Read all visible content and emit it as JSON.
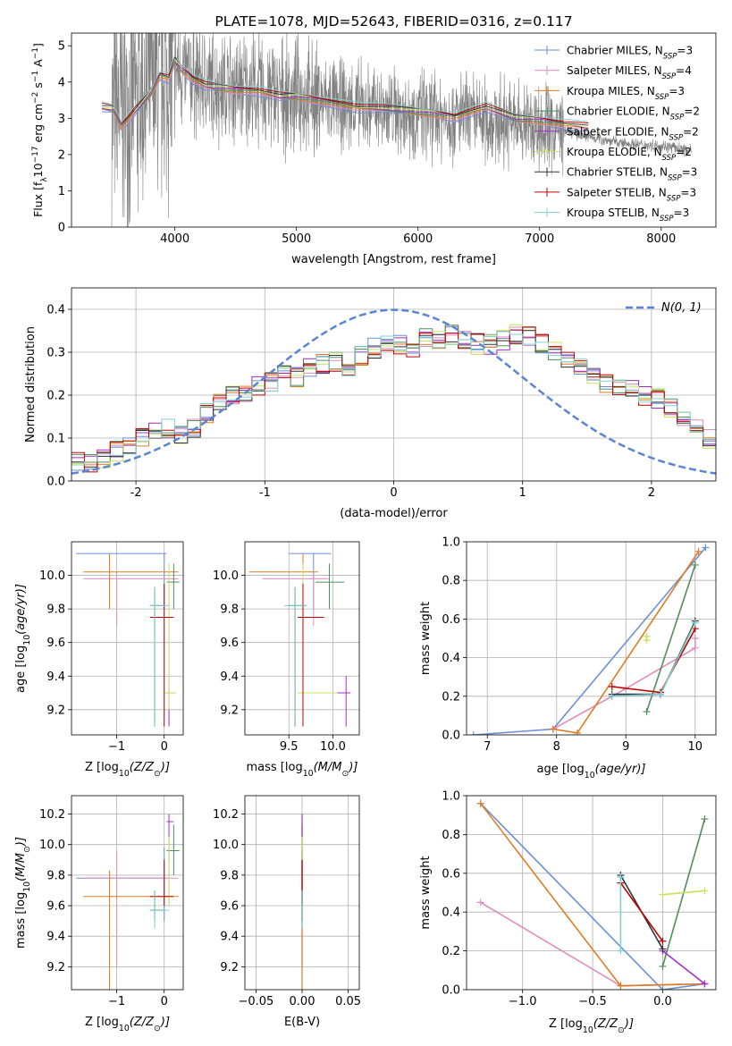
{
  "colors": {
    "chabrier_miles": "#6b8fd6",
    "salpeter_miles": "#e08cbf",
    "kroupa_miles": "#e07b22",
    "chabrier_elodie": "#4f8f5a",
    "salpeter_elodie": "#a02fc4",
    "kroupa_elodie": "#c8e05a",
    "chabrier_stelib": "#333333",
    "salpeter_stelib": "#c00000",
    "kroupa_stelib": "#7fd0d0",
    "observed": "#808080",
    "gauss": "#5a85d4"
  },
  "chart_data": [
    {
      "id": "spectrum",
      "type": "line",
      "title": "PLATE=1078, MJD=52643, FIBERID=0316, z=0.117",
      "xlabel": "wavelength [Angstrom, rest frame]",
      "ylabel": "Flux [f",
      "ylabel_parts": [
        "Flux [f",
        "λ",
        "10",
        "−17",
        " erg cm",
        "−2",
        " s",
        "−1",
        " A",
        "−1",
        "]"
      ],
      "xlim": [
        3150,
        8450
      ],
      "ylim": [
        0,
        5.35
      ],
      "xticks": [
        4000,
        5000,
        6000,
        7000,
        8000
      ],
      "yticks": [
        0,
        1,
        2,
        3,
        4,
        5
      ],
      "legend_position": "top-right",
      "legend": [
        {
          "name": "Chabrier MILES",
          "n": "3"
        },
        {
          "name": "Salpeter MILES",
          "n": "4"
        },
        {
          "name": "Kroupa MILES",
          "n": "3"
        },
        {
          "name": "Chabrier ELODIE",
          "n": "2"
        },
        {
          "name": "Salpeter ELODIE",
          "n": "2"
        },
        {
          "name": "Kroupa ELODIE",
          "n": "2"
        },
        {
          "name": "Chabrier STELIB",
          "n": "3"
        },
        {
          "name": "Salpeter STELIB",
          "n": "3"
        },
        {
          "name": "Kroupa STELIB",
          "n": "3"
        }
      ],
      "legend_n_label": "N",
      "legend_n_sub": "SSP",
      "model_continuum": {
        "x": [
          3400,
          3500,
          3560,
          3620,
          3700,
          3800,
          3880,
          3950,
          4000,
          4060,
          4150,
          4250,
          4350,
          4500,
          4700,
          4860,
          5000,
          5200,
          5500,
          5800,
          6100,
          6300,
          6560,
          6800,
          7000,
          7200,
          7400
        ],
        "y": [
          3.3,
          3.25,
          2.8,
          3.0,
          3.3,
          3.7,
          4.2,
          4.1,
          4.6,
          4.35,
          4.1,
          3.9,
          3.85,
          3.8,
          3.75,
          3.6,
          3.6,
          3.5,
          3.3,
          3.25,
          3.15,
          3.05,
          3.3,
          3.0,
          2.95,
          2.85,
          2.75
        ]
      },
      "observed_continuum": {
        "x": [
          3480,
          3700,
          4000,
          4300,
          4600,
          5000,
          5400,
          5800,
          6200,
          6600,
          7000,
          7400,
          7700,
          8000,
          8250
        ],
        "y": [
          3.1,
          3.6,
          4.3,
          3.9,
          3.8,
          3.6,
          3.35,
          3.2,
          3.05,
          2.95,
          2.8,
          2.5,
          2.3,
          2.25,
          2.1
        ]
      }
    },
    {
      "id": "residuals",
      "type": "bar",
      "xlabel": "(data-model)/error",
      "ylabel": "Normed distribution",
      "xlim": [
        -2.5,
        2.5
      ],
      "ylim": [
        0,
        0.45
      ],
      "xticks": [
        -2,
        -1,
        0,
        1,
        2
      ],
      "yticks": [
        0.0,
        0.1,
        0.2,
        0.3,
        0.4
      ],
      "legend_position": "top-right",
      "legend": "N(0, 1)",
      "gauss": {
        "mu": 0,
        "sigma": 1
      },
      "bin_width": 0.1,
      "base_profile": [
        0.05,
        0.04,
        0.05,
        0.07,
        0.08,
        0.1,
        0.11,
        0.12,
        0.11,
        0.12,
        0.16,
        0.19,
        0.2,
        0.21,
        0.22,
        0.23,
        0.25,
        0.24,
        0.26,
        0.27,
        0.28,
        0.27,
        0.29,
        0.31,
        0.32,
        0.32,
        0.31,
        0.33,
        0.33,
        0.34,
        0.33,
        0.32,
        0.32,
        0.33,
        0.34,
        0.34,
        0.32,
        0.3,
        0.28,
        0.26,
        0.24,
        0.23,
        0.22,
        0.21,
        0.2,
        0.19,
        0.17,
        0.14,
        0.12,
        0.1
      ]
    },
    {
      "id": "age_vs_Z",
      "type": "scatter",
      "xlabel": "Z [log",
      "xlabel_parts": [
        "Z [log",
        "10",
        "(Z/Z",
        "⊙",
        ")]"
      ],
      "ylabel": "age  [log",
      "ylabel_parts": [
        "age  [log",
        "10",
        "(age/yr)]"
      ],
      "xlim": [
        -1.95,
        0.4
      ],
      "ylim": [
        9.05,
        10.2
      ],
      "xticks": [
        -1,
        0
      ],
      "yticks": [
        9.2,
        9.4,
        9.6,
        9.8,
        10.0
      ]
    },
    {
      "id": "age_vs_mass",
      "type": "scatter",
      "xlabel": "mass [log",
      "xlabel_parts": [
        "mass [log",
        "10",
        "(M/M",
        "⊙",
        ")]"
      ],
      "xlim": [
        9.0,
        10.3
      ],
      "ylim": [
        9.05,
        10.2
      ],
      "xticks": [
        9.5,
        10.0
      ],
      "yticks": [
        9.2,
        9.4,
        9.6,
        9.8,
        10.0
      ]
    },
    {
      "id": "weight_vs_age",
      "type": "line",
      "xlabel": "age  [log",
      "xlabel_parts": [
        "age  [log",
        "10",
        "(age/yr)]"
      ],
      "ylabel": "mass weight",
      "xlim": [
        6.7,
        10.3
      ],
      "ylim": [
        0,
        1.0
      ],
      "xticks": [
        7,
        8,
        9,
        10
      ],
      "yticks": [
        0.0,
        0.2,
        0.4,
        0.6,
        0.8,
        1.0
      ]
    },
    {
      "id": "mass_vs_Z",
      "type": "scatter",
      "xlabel": "Z [log",
      "xlabel_parts": [
        "Z [log",
        "10",
        "(Z/Z",
        "⊙",
        ")]"
      ],
      "ylabel": "mass [log",
      "ylabel_parts": [
        "mass [log",
        "10",
        "(M/M",
        "⊙",
        ")]"
      ],
      "xlim": [
        -1.95,
        0.4
      ],
      "ylim": [
        9.05,
        10.32
      ],
      "xticks": [
        -1,
        0
      ],
      "yticks": [
        9.2,
        9.4,
        9.6,
        9.8,
        10.0,
        10.2
      ]
    },
    {
      "id": "mass_vs_EBV",
      "type": "scatter",
      "xlabel": "E(B-V)",
      "xlim": [
        -0.062,
        0.062
      ],
      "ylim": [
        9.05,
        10.32
      ],
      "xticks": [
        -0.05,
        0.0,
        0.05
      ],
      "yticks": [
        9.2,
        9.4,
        9.6,
        9.8,
        10.0,
        10.2
      ]
    },
    {
      "id": "weight_vs_Z",
      "type": "line",
      "xlabel": "Z [log",
      "xlabel_parts": [
        "Z [log",
        "10",
        "(Z/Z",
        "⊙",
        ")]"
      ],
      "ylabel": "mass weight",
      "xlim": [
        -1.4,
        0.38
      ],
      "ylim": [
        0,
        1.0
      ],
      "xticks": [
        -1.0,
        -0.5,
        0.0
      ],
      "yticks": [
        0.0,
        0.2,
        0.4,
        0.6,
        0.8,
        1.0
      ]
    }
  ],
  "models": [
    {
      "key": "chabrier_miles",
      "Z": 0.0,
      "age": 10.13,
      "mass": 9.78,
      "Zerr": [
        -1.85,
        0.05
      ],
      "ageerr": [
        9.8,
        10.13
      ],
      "masserr": [
        9.5,
        9.98
      ],
      "w_age": [
        [
          6.8,
          0.0
        ],
        [
          7.95,
          0.03
        ],
        [
          10.15,
          0.97
        ]
      ],
      "w_Z": [
        [
          -1.3,
          0.96
        ],
        [
          0.0,
          0.0
        ],
        [
          0.3,
          0.03
        ]
      ]
    },
    {
      "key": "salpeter_miles",
      "Z": -1.0,
      "age": 9.98,
      "mass": 9.78,
      "Zerr": [
        -1.7,
        0.3
      ],
      "ageerr": [
        9.7,
        10.02
      ],
      "masserr": [
        9.2,
        9.95
      ],
      "w_age": [
        [
          7.95,
          0.03
        ],
        [
          9.0,
          0.24
        ],
        [
          10.0,
          0.45
        ],
        [
          10.0,
          0.5
        ]
      ],
      "w_Z": [
        [
          -1.3,
          0.45
        ],
        [
          -0.3,
          0.02
        ],
        [
          0.3,
          0.03
        ]
      ]
    },
    {
      "key": "kroupa_miles",
      "Z": -1.15,
      "age": 10.02,
      "mass": 9.66,
      "Zerr": [
        -1.7,
        0.3
      ],
      "ageerr": [
        9.8,
        10.13
      ],
      "masserr": [
        9.05,
        9.83
      ],
      "w_age": [
        [
          7.95,
          0.03
        ],
        [
          8.3,
          0.01
        ],
        [
          10.05,
          0.95
        ]
      ],
      "w_Z": [
        [
          -1.3,
          0.96
        ],
        [
          -0.3,
          0.02
        ],
        [
          0.3,
          0.03
        ]
      ]
    },
    {
      "key": "chabrier_elodie",
      "Z": 0.2,
      "age": 9.96,
      "mass": 9.96,
      "Zerr": [
        0.05,
        0.32
      ],
      "ageerr": [
        9.8,
        10.07
      ],
      "masserr": [
        9.8,
        10.13
      ],
      "w_age": [
        [
          9.3,
          0.12
        ],
        [
          10.0,
          0.88
        ]
      ],
      "w_Z": [
        [
          0.0,
          0.12
        ],
        [
          0.3,
          0.88
        ]
      ]
    },
    {
      "key": "salpeter_elodie",
      "Z": 0.1,
      "age": 9.3,
      "mass": 10.15,
      "Zerr": [
        0.05,
        0.2
      ],
      "ageerr": [
        9.1,
        9.4
      ],
      "masserr": [
        9.6,
        10.2
      ],
      "w_age": [
        [
          8.8,
          0.2
        ],
        [
          9.5,
          0.21
        ]
      ],
      "w_Z": [
        [
          0.0,
          0.2
        ],
        [
          0.3,
          0.03
        ]
      ]
    },
    {
      "key": "kroupa_elodie",
      "Z": 0.1,
      "age": 9.3,
      "mass": 9.66,
      "Zerr": [
        0.0,
        0.25
      ],
      "ageerr": [
        9.2,
        10.07
      ],
      "masserr": [
        9.6,
        10.05
      ],
      "w_age": [
        [
          9.3,
          0.49
        ],
        [
          9.3,
          0.51
        ]
      ],
      "w_Z": [
        [
          0.0,
          0.49
        ],
        [
          0.3,
          0.51
        ]
      ]
    },
    {
      "key": "chabrier_stelib",
      "Z": -0.2,
      "age": 9.82,
      "mass": 9.57,
      "Zerr": [
        -0.3,
        0.0
      ],
      "ageerr": [
        9.1,
        9.93
      ],
      "masserr": [
        9.5,
        9.7
      ],
      "w_age": [
        [
          8.8,
          0.21
        ],
        [
          9.5,
          0.21
        ],
        [
          10.0,
          0.59
        ]
      ],
      "w_Z": [
        [
          -0.3,
          0.59
        ],
        [
          0.0,
          0.21
        ]
      ]
    },
    {
      "key": "salpeter_stelib",
      "Z": 0.0,
      "age": 9.75,
      "mass": 9.66,
      "Zerr": [
        -0.3,
        0.2
      ],
      "ageerr": [
        9.1,
        9.95
      ],
      "masserr": [
        9.6,
        9.9
      ],
      "w_age": [
        [
          8.8,
          0.25
        ],
        [
          9.5,
          0.22
        ],
        [
          10.0,
          0.55
        ]
      ],
      "w_Z": [
        [
          -0.3,
          0.55
        ],
        [
          0.0,
          0.25
        ]
      ]
    },
    {
      "key": "kroupa_stelib",
      "Z": -0.2,
      "age": 9.82,
      "mass": 9.57,
      "Zerr": [
        -0.3,
        0.1
      ],
      "ageerr": [
        9.1,
        9.93
      ],
      "masserr": [
        9.45,
        9.7
      ],
      "w_age": [
        [
          8.8,
          0.2
        ],
        [
          9.5,
          0.21
        ],
        [
          10.0,
          0.58
        ]
      ],
      "w_Z": [
        [
          -0.3,
          0.58
        ],
        [
          -0.3,
          0.2
        ]
      ]
    }
  ]
}
